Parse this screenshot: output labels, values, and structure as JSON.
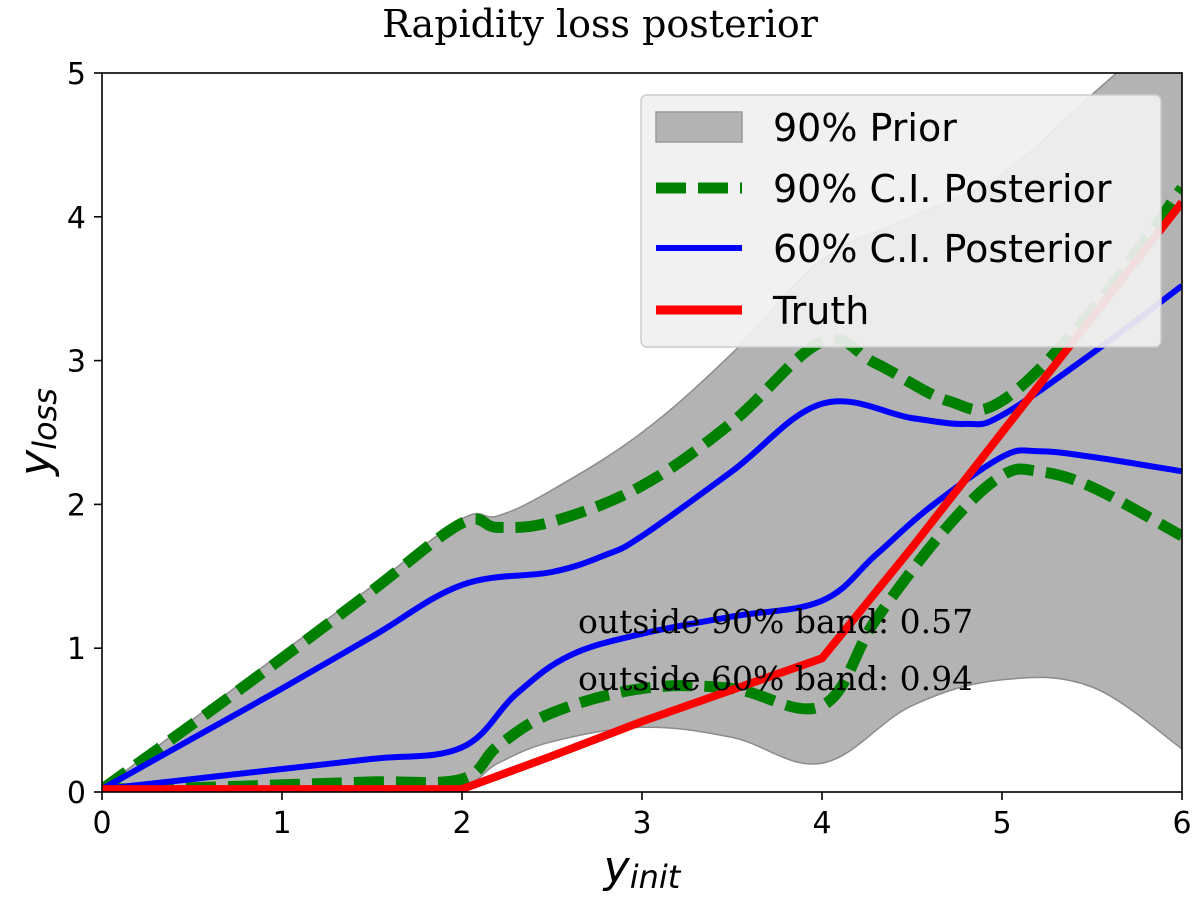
{
  "chart_data": {
    "type": "area",
    "title": "Rapidity loss posterior",
    "xlabel": {
      "main": "y",
      "sub": "init"
    },
    "ylabel": {
      "main": "y",
      "sub": "loss"
    },
    "xlim": [
      0,
      6
    ],
    "ylim": [
      0,
      5
    ],
    "xticks": [
      "0",
      "1",
      "2",
      "3",
      "4",
      "5",
      "6"
    ],
    "yticks": [
      "0",
      "1",
      "2",
      "3",
      "4",
      "5"
    ],
    "grid": false,
    "legend_position": "top-right",
    "prior_band": {
      "name": "90% Prior",
      "color": "#b3b3b3",
      "x": [
        0,
        0.5,
        1,
        1.5,
        2,
        2.2,
        2.5,
        3,
        3.5,
        4,
        4.5,
        5,
        5.5,
        6
      ],
      "upper": [
        0.02,
        0.5,
        0.97,
        1.43,
        1.9,
        1.92,
        2.1,
        2.5,
        3.05,
        3.7,
        4.0,
        4.3,
        4.85,
        5.4
      ],
      "lower": [
        0.02,
        0.02,
        0.02,
        0.03,
        0.05,
        0.2,
        0.35,
        0.45,
        0.38,
        0.2,
        0.6,
        0.78,
        0.73,
        0.3
      ]
    },
    "series": [
      {
        "name": "90% C.I. Posterior",
        "color": "#008000",
        "style": "dashed",
        "upper": {
          "x": [
            0,
            0.5,
            1,
            1.5,
            2,
            2.2,
            2.5,
            3,
            3.5,
            4,
            4.3,
            4.7,
            5,
            5.5,
            6
          ],
          "y": [
            0.02,
            0.47,
            0.93,
            1.4,
            1.87,
            1.84,
            1.88,
            2.13,
            2.57,
            3.13,
            2.98,
            2.72,
            2.72,
            3.35,
            4.2
          ]
        },
        "lower": {
          "x": [
            0,
            0.5,
            1,
            1.5,
            2,
            2.2,
            2.5,
            3,
            3.5,
            4,
            4.3,
            4.7,
            5,
            5.2,
            5.5,
            6
          ],
          "y": [
            0.02,
            0.03,
            0.05,
            0.07,
            0.09,
            0.32,
            0.55,
            0.72,
            0.72,
            0.6,
            1.2,
            1.85,
            2.2,
            2.23,
            2.12,
            1.78
          ]
        }
      },
      {
        "name": "60% C.I. Posterior",
        "color": "#0000ff",
        "style": "solid",
        "upper": {
          "x": [
            0,
            0.5,
            1,
            1.5,
            2,
            2.5,
            2.8,
            3,
            3.5,
            4,
            4.5,
            4.8,
            5,
            5.5,
            6
          ],
          "y": [
            0.02,
            0.37,
            0.72,
            1.08,
            1.44,
            1.53,
            1.65,
            1.78,
            2.23,
            2.7,
            2.6,
            2.56,
            2.62,
            3.05,
            3.52
          ]
        },
        "lower": {
          "x": [
            0,
            0.5,
            1,
            1.5,
            2,
            2.3,
            2.6,
            3,
            3.5,
            4,
            4.3,
            4.6,
            5,
            5.2,
            5.5,
            6
          ],
          "y": [
            0.02,
            0.09,
            0.16,
            0.23,
            0.31,
            0.68,
            0.95,
            1.1,
            1.22,
            1.33,
            1.65,
            1.98,
            2.33,
            2.37,
            2.33,
            2.23
          ]
        }
      },
      {
        "name": "Truth",
        "color": "#ff0000",
        "style": "solid",
        "x": [
          0,
          1,
          2,
          2.5,
          3,
          3.5,
          4,
          4.5,
          5,
          5.5,
          6
        ],
        "y": [
          0.02,
          0.02,
          0.02,
          0.25,
          0.49,
          0.71,
          0.93,
          1.7,
          2.5,
          3.3,
          4.1
        ]
      }
    ],
    "annotations": [
      "outside 90% band: 0.57",
      "outside 60% band: 0.94"
    ]
  }
}
